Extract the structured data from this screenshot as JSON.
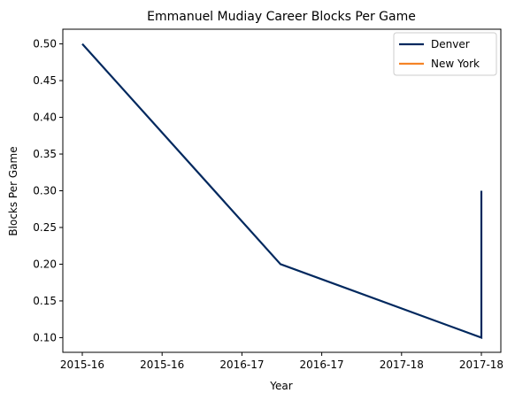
{
  "chart_data": {
    "type": "line",
    "title": "Emmanuel Mudiay Career Blocks Per Game",
    "xlabel": "Year",
    "ylabel": "Blocks Per Game",
    "x_tick_labels": [
      "2015-16",
      "2015-16",
      "2016-17",
      "2016-17",
      "2017-18",
      "2017-18"
    ],
    "ylim": [
      0.08,
      0.52
    ],
    "y_ticks": [
      "0.10",
      "0.15",
      "0.20",
      "0.25",
      "0.30",
      "0.35",
      "0.40",
      "0.45",
      "0.50"
    ],
    "grid": false,
    "legend_position": "top-right",
    "series": [
      {
        "name": "Denver",
        "color": "#00285e",
        "points": [
          {
            "x": "2015-16",
            "y": 0.5
          },
          {
            "x": "2016-17",
            "y": 0.2
          },
          {
            "x": "2017-18",
            "y": 0.1
          },
          {
            "x": "2017-18",
            "y": 0.3
          }
        ]
      },
      {
        "name": "New York",
        "color": "#f58426",
        "points": []
      }
    ]
  }
}
